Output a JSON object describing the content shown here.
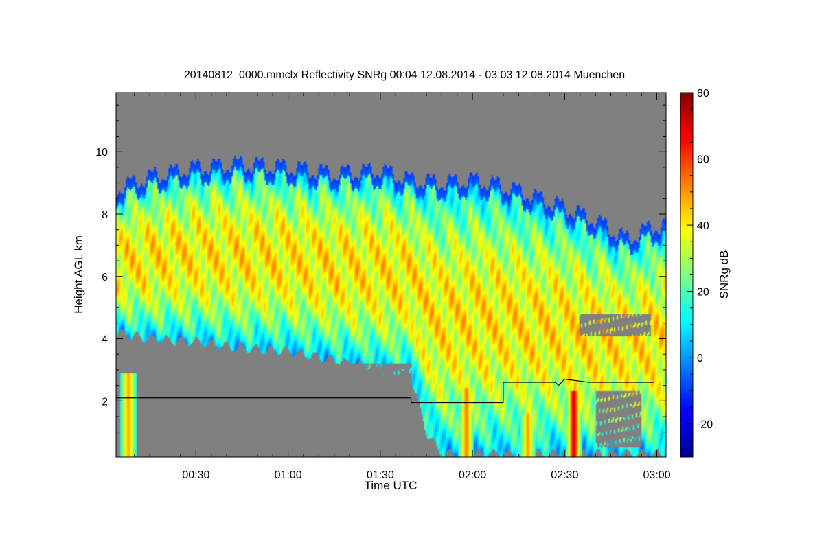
{
  "chart_data": {
    "type": "heatmap",
    "title": "20140812_0000.mmclx Reflectivity SNRg   00:04 12.08.2014 - 03:03 12.08.2014 Muenchen",
    "xlabel": "Time UTC",
    "ylabel": "Height AGL km",
    "colorbar_label": "SNRg dB",
    "x_start": "00:04",
    "x_end": "03:03",
    "x_ticks": [
      "00:30",
      "01:00",
      "01:30",
      "02:00",
      "02:30",
      "03:00"
    ],
    "x_tick_minutes": [
      30,
      60,
      90,
      120,
      150,
      180
    ],
    "y_ticks": [
      "2",
      "4",
      "6",
      "8",
      "10"
    ],
    "y_tick_values": [
      2,
      4,
      6,
      8,
      10
    ],
    "ylim": [
      0.2,
      11.9
    ],
    "color_range": [
      -30,
      80
    ],
    "colorbar_ticks": [
      "-20",
      "0",
      "20",
      "40",
      "60",
      "80"
    ],
    "colorbar_tick_values": [
      -20,
      0,
      20,
      40,
      60,
      80
    ],
    "background_color": "#808080",
    "field": {
      "cloud_top_km": [
        [
          4,
          8.8
        ],
        [
          15,
          9.2
        ],
        [
          30,
          9.5
        ],
        [
          45,
          9.6
        ],
        [
          60,
          9.5
        ],
        [
          75,
          9.3
        ],
        [
          90,
          9.4
        ],
        [
          100,
          9.1
        ],
        [
          110,
          9.0
        ],
        [
          120,
          9.1
        ],
        [
          130,
          8.9
        ],
        [
          145,
          8.4
        ],
        [
          160,
          7.8
        ],
        [
          170,
          7.2
        ],
        [
          179,
          7.6
        ]
      ],
      "cloud_base_km": [
        [
          4,
          4.2
        ],
        [
          15,
          4.0
        ],
        [
          30,
          3.9
        ],
        [
          45,
          3.7
        ],
        [
          60,
          3.6
        ],
        [
          75,
          3.3
        ],
        [
          90,
          3.0
        ],
        [
          100,
          2.8
        ],
        [
          105,
          1.0
        ],
        [
          110,
          0.3
        ],
        [
          179,
          0.3
        ]
      ],
      "core_snr_db": 40,
      "dry_gaps": [
        [
          45,
          100,
          0.4,
          3.2
        ],
        [
          12,
          28,
          0.7,
          2.1
        ],
        [
          160,
          175,
          0.5,
          2.3
        ],
        [
          155,
          178,
          4.1,
          4.8
        ]
      ],
      "rain_shafts": [
        [
          8,
          0.2,
          2.9,
          50
        ],
        [
          118,
          0.2,
          2.4,
          55
        ],
        [
          153,
          0.2,
          2.3,
          75
        ],
        [
          138,
          0.2,
          1.6,
          50
        ]
      ]
    },
    "overlay_line_km": [
      [
        4,
        2.1
      ],
      [
        100,
        2.1
      ],
      [
        100,
        1.95
      ],
      [
        130,
        1.95
      ],
      [
        130,
        2.6
      ],
      [
        147,
        2.6
      ],
      [
        148,
        2.5
      ],
      [
        150,
        2.7
      ],
      [
        158,
        2.6
      ],
      [
        179,
        2.6
      ]
    ]
  }
}
